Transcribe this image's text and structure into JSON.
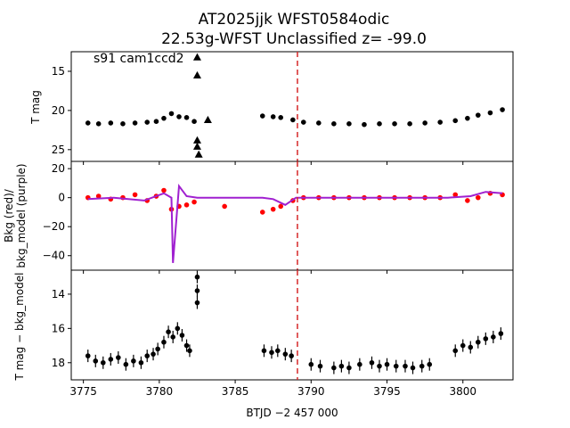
{
  "chart_data": {
    "type": "scatter",
    "title": "AT2025jjk  WFST0584odic",
    "subtitle": "22.53g-WFST Unclassified z= -99.0",
    "xlabel": "BTJD −2 457 000",
    "xlim": [
      3774.2,
      3803.3
    ],
    "xticks": [
      "3775",
      "3780",
      "3785",
      "3790",
      "3795",
      "3800"
    ],
    "vline": {
      "x": 3789.1,
      "color": "#d62728",
      "style": "dashed"
    },
    "panels": [
      {
        "name": "T mag",
        "ylabel": "T mag",
        "annotation": "s91 cam1ccd2",
        "ylim": [
          12.5,
          26.5
        ],
        "inverted": true,
        "yticks": [
          "15",
          "20",
          "25"
        ],
        "series": [
          {
            "marker": "point",
            "color": "#000000",
            "x": [
              3775.3,
              3776.0,
              3776.8,
              3777.6,
              3778.4,
              3779.2,
              3779.8,
              3780.3,
              3780.8,
              3781.3,
              3781.8,
              3782.3,
              3786.8,
              3787.5,
              3788.0,
              3788.8,
              3789.5,
              3790.5,
              3791.5,
              3792.5,
              3793.5,
              3794.5,
              3795.5,
              3796.5,
              3797.5,
              3798.5,
              3799.5,
              3800.3,
              3801.0,
              3801.8,
              3802.6
            ],
            "y": [
              21.6,
              21.7,
              21.6,
              21.7,
              21.6,
              21.5,
              21.4,
              21.0,
              20.4,
              20.8,
              20.9,
              21.4,
              20.7,
              20.8,
              20.9,
              21.2,
              21.5,
              21.6,
              21.7,
              21.7,
              21.8,
              21.7,
              21.7,
              21.7,
              21.6,
              21.5,
              21.3,
              21.0,
              20.6,
              20.3,
              19.9
            ]
          },
          {
            "marker": "triangle",
            "color": "#000000",
            "x": [
              3782.5,
              3782.5,
              3782.5,
              3782.5,
              3782.6,
              3783.2
            ],
            "y": [
              13.2,
              15.5,
              23.8,
              24.6,
              25.6,
              21.2
            ]
          }
        ]
      },
      {
        "name": "background",
        "ylabel": "Bkg (red)/ bkg_model (purple)",
        "ylim": [
          -50,
          25
        ],
        "yticks": [
          "20",
          "0",
          "−20",
          "−40"
        ],
        "series": [
          {
            "marker": "point",
            "color": "#ff0000",
            "x": [
              3775.3,
              3776.0,
              3776.8,
              3777.6,
              3778.4,
              3779.2,
              3779.8,
              3780.3,
              3780.8,
              3781.3,
              3781.8,
              3782.3,
              3784.3,
              3786.8,
              3787.5,
              3788.0,
              3788.8,
              3789.5,
              3790.5,
              3791.5,
              3792.5,
              3793.5,
              3794.5,
              3795.5,
              3796.5,
              3797.5,
              3798.5,
              3799.5,
              3800.3,
              3801.0,
              3801.8,
              3802.6
            ],
            "y": [
              0,
              1,
              -1,
              0,
              2,
              -2,
              1,
              5,
              -8,
              -6,
              -5,
              -3,
              -6,
              -10,
              -8,
              -6,
              -2,
              0,
              0,
              0,
              0,
              0,
              0,
              0,
              0,
              0,
              0,
              2,
              -2,
              0,
              3,
              2
            ]
          },
          {
            "marker": "line",
            "color": "#a020d0",
            "x": [
              3775.3,
              3777.0,
              3779.0,
              3780.3,
              3780.8,
              3780.9,
              3781.3,
              3781.8,
              3782.5,
              3786.8,
              3787.5,
              3788.3,
              3789.0,
              3790.0,
              3795.0,
              3799.0,
              3800.5,
              3801.5,
              3802.6
            ],
            "y": [
              -1,
              0,
              -2,
              3,
              0,
              -45,
              8,
              1,
              0,
              0,
              -1,
              -5,
              0,
              0,
              0,
              0,
              1,
              4,
              3
            ]
          }
        ]
      },
      {
        "name": "T mag − bkg_model",
        "ylabel": "T mag − bkg_model",
        "ylim": [
          12.6,
          19.0
        ],
        "inverted": true,
        "yticks": [
          "14",
          "16",
          "18"
        ],
        "series": [
          {
            "marker": "point-errorbar",
            "color": "#000000",
            "x": [
              3775.3,
              3775.8,
              3776.3,
              3776.8,
              3777.3,
              3777.8,
              3778.3,
              3778.8,
              3779.2,
              3779.6,
              3779.9,
              3780.3,
              3780.6,
              3780.9,
              3781.2,
              3781.5,
              3781.8,
              3782.0,
              3782.5,
              3782.5,
              3782.5,
              3786.9,
              3787.4,
              3787.8,
              3788.3,
              3788.7,
              3790.0,
              3790.6,
              3791.5,
              3792.0,
              3792.5,
              3793.2,
              3794.0,
              3794.5,
              3795.0,
              3795.6,
              3796.2,
              3796.7,
              3797.3,
              3797.8,
              3799.5,
              3800.0,
              3800.5,
              3801.0,
              3801.5,
              3802.0,
              3802.5
            ],
            "y": [
              17.6,
              17.9,
              18.0,
              17.8,
              17.7,
              18.1,
              17.9,
              18.0,
              17.6,
              17.5,
              17.2,
              16.8,
              16.2,
              16.5,
              16.0,
              16.4,
              17.0,
              17.3,
              14.5,
              13.8,
              13.0,
              17.3,
              17.4,
              17.3,
              17.5,
              17.6,
              18.1,
              18.2,
              18.3,
              18.2,
              18.3,
              18.1,
              18.0,
              18.2,
              18.1,
              18.2,
              18.2,
              18.3,
              18.2,
              18.1,
              17.3,
              17.0,
              17.1,
              16.8,
              16.6,
              16.5,
              16.3
            ]
          }
        ]
      }
    ]
  }
}
